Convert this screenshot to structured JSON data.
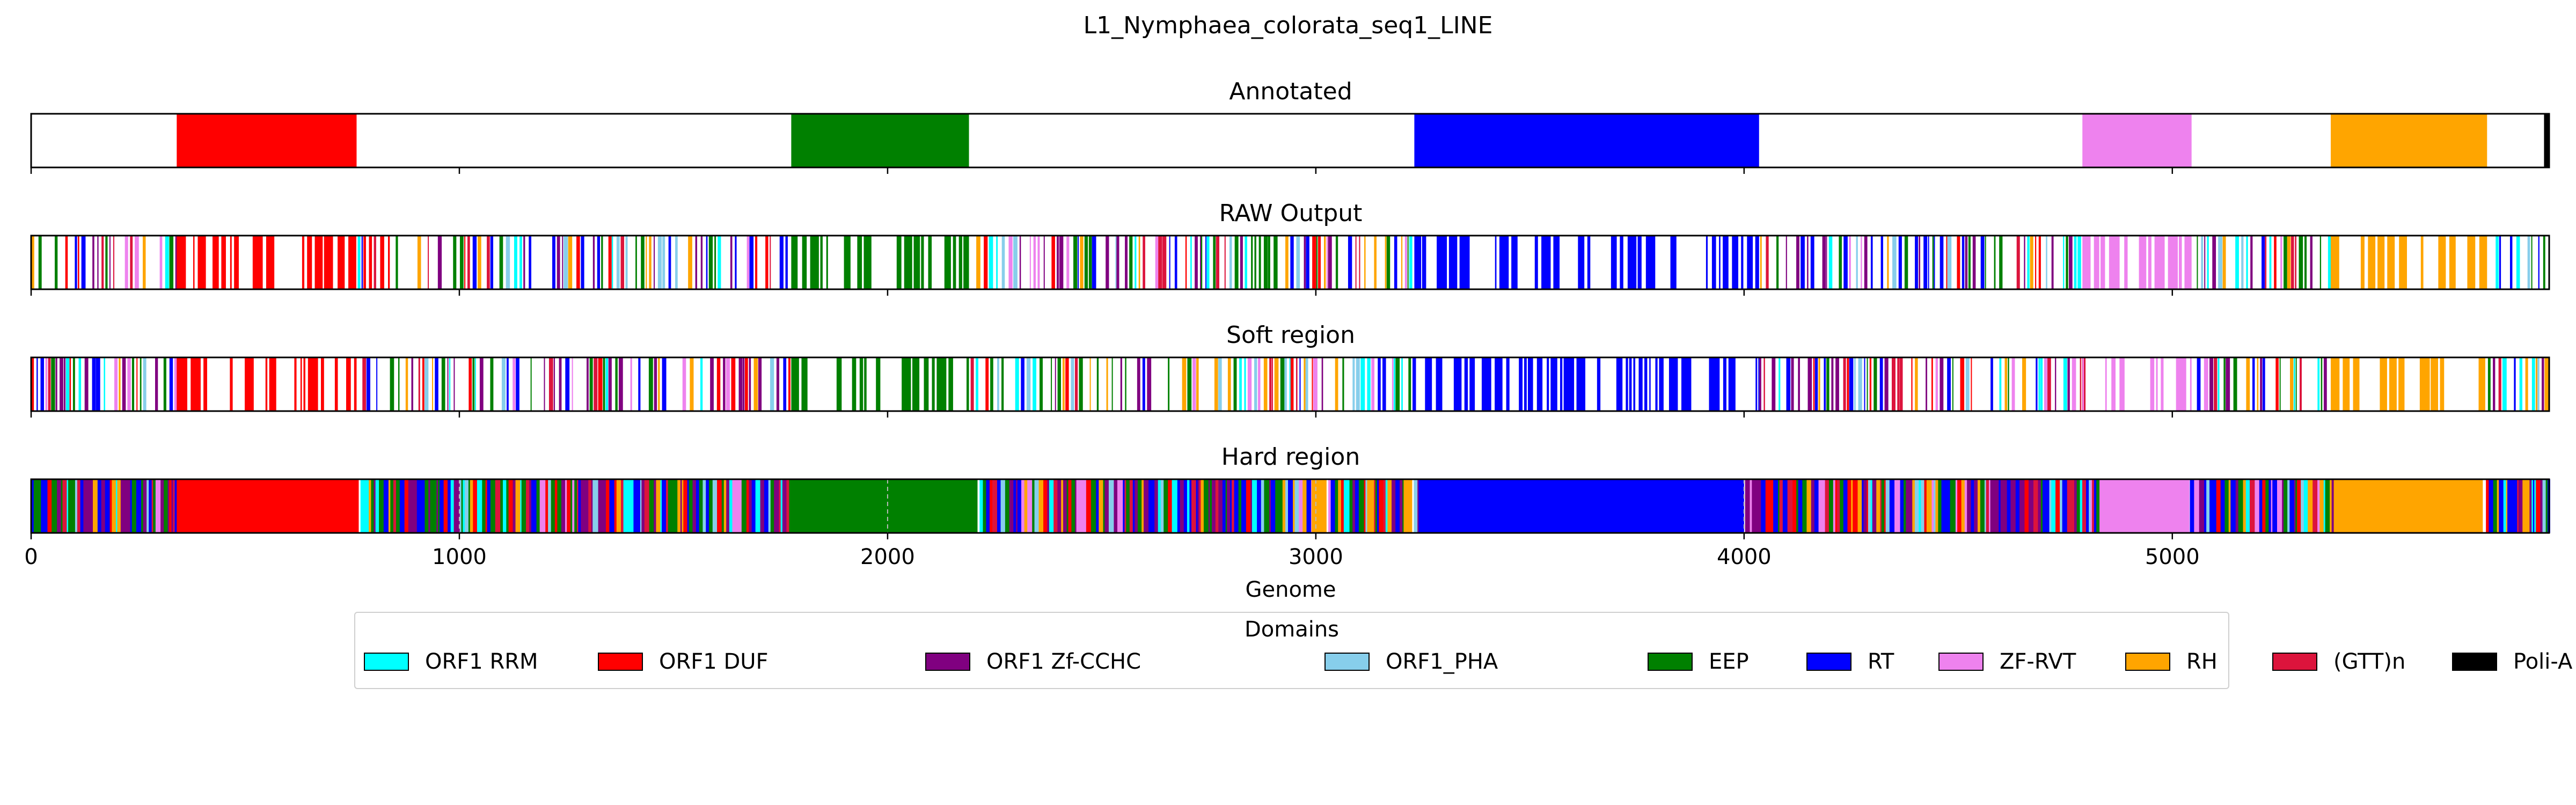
{
  "figure_title": "L1_Nymphaea_colorata_seq1_LINE",
  "chart_data": {
    "type": "bar",
    "xlabel": "Genome",
    "xlim": [
      0,
      5880
    ],
    "xticks": [
      0,
      1000,
      2000,
      3000,
      4000,
      5000
    ],
    "grid": false,
    "legend_placement": "bottom-center",
    "legend_title": "Domains",
    "domains": [
      {
        "name": "ORF1 RRM",
        "color": "#00FFFF"
      },
      {
        "name": "ORF1 DUF",
        "color": "#FF0000"
      },
      {
        "name": "ORF1 Zf-CCHC",
        "color": "#800080"
      },
      {
        "name": "ORF1_PHA",
        "color": "#87CEEB"
      },
      {
        "name": "EEP",
        "color": "#008000"
      },
      {
        "name": "RT",
        "color": "#0000FF"
      },
      {
        "name": "ZF-RVT",
        "color": "#EE82EE"
      },
      {
        "name": "RH",
        "color": "#FFA500"
      },
      {
        "name": "(GTT)n",
        "color": "#DC143C"
      },
      {
        "name": "Poli-A",
        "color": "#000000"
      }
    ],
    "tracks": [
      {
        "title": "Annotated",
        "pattern": "annotated",
        "segments": [
          {
            "domain": "ORF1 DUF",
            "start": 340,
            "end": 760
          },
          {
            "domain": "EEP",
            "start": 1775,
            "end": 2190
          },
          {
            "domain": "RT",
            "start": 3230,
            "end": 4035
          },
          {
            "domain": "ZF-RVT",
            "start": 4790,
            "end": 5045
          },
          {
            "domain": "RH",
            "start": 5370,
            "end": 5735
          },
          {
            "domain": "Poli-A",
            "start": 5868,
            "end": 5880
          }
        ]
      },
      {
        "title": "RAW Output",
        "pattern": "sparse",
        "segments": [
          {
            "domain": "ORF1 DUF",
            "start": 340,
            "end": 760
          },
          {
            "domain": "EEP",
            "start": 1775,
            "end": 2190
          },
          {
            "domain": "RT",
            "start": 3230,
            "end": 4035
          },
          {
            "domain": "ZF-RVT",
            "start": 4790,
            "end": 5045
          },
          {
            "domain": "RH",
            "start": 5370,
            "end": 5735
          }
        ]
      },
      {
        "title": "Soft region",
        "pattern": "sparse",
        "segments": [
          {
            "domain": "ORF1 DUF",
            "start": 340,
            "end": 760
          },
          {
            "domain": "EEP",
            "start": 1775,
            "end": 2190
          },
          {
            "domain": "RT",
            "start": 3230,
            "end": 4035
          },
          {
            "domain": "ZF-RVT",
            "start": 4790,
            "end": 5045
          },
          {
            "domain": "RH",
            "start": 5370,
            "end": 5735
          }
        ]
      },
      {
        "title": "Hard region",
        "pattern": "dense",
        "segments": [
          {
            "domain": "ORF1 DUF",
            "start": 340,
            "end": 765
          },
          {
            "domain": "EEP",
            "start": 1770,
            "end": 2210
          },
          {
            "domain": "RH",
            "start": 2990,
            "end": 3025
          },
          {
            "domain": "RH",
            "start": 3205,
            "end": 3225
          },
          {
            "domain": "RT",
            "start": 3240,
            "end": 4000
          },
          {
            "domain": "ZF-RVT",
            "start": 4830,
            "end": 5040
          },
          {
            "domain": "RH",
            "start": 5380,
            "end": 5725
          }
        ],
        "dashed_lines": [
          1000,
          2000,
          3000,
          4000
        ]
      }
    ]
  }
}
